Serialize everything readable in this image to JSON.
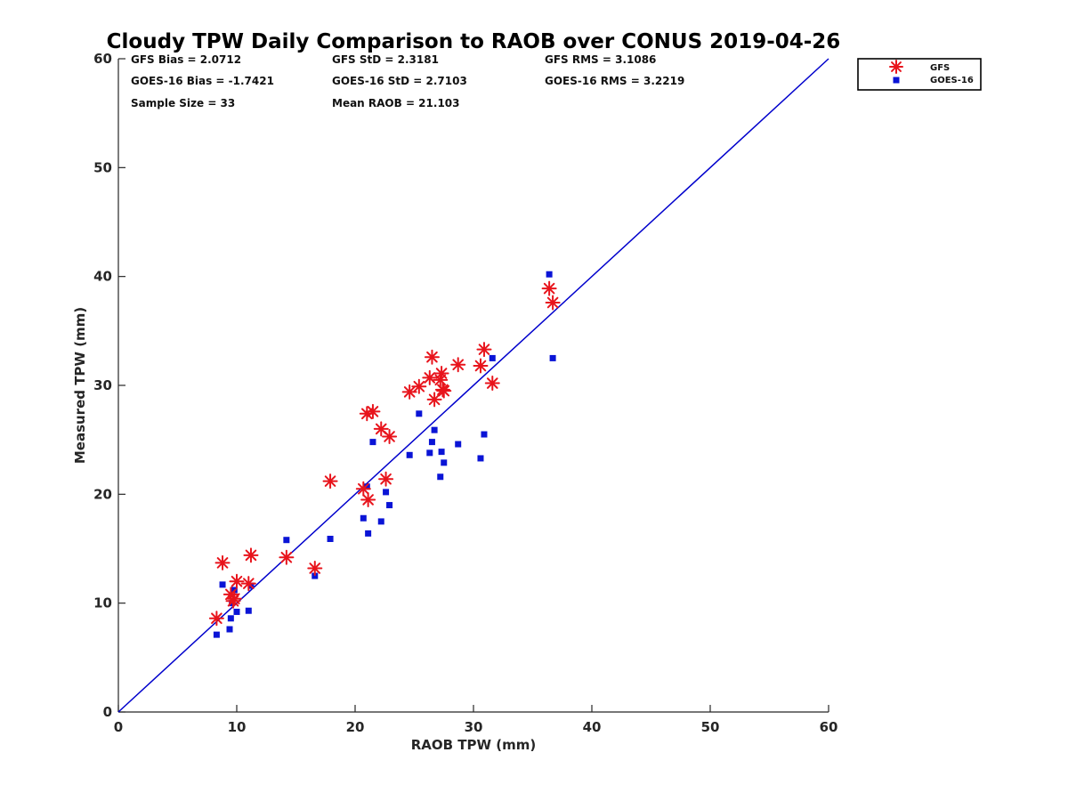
{
  "chart_data": {
    "type": "scatter",
    "title": "Cloudy TPW Daily Comparison to RAOB over CONUS 2019-04-26",
    "xlabel": "RAOB TPW (mm)",
    "ylabel": "Measured TPW (mm)",
    "xlim": [
      0,
      60
    ],
    "ylim": [
      0,
      60
    ],
    "xticks": [
      "0",
      "10",
      "20",
      "30",
      "40",
      "50",
      "60"
    ],
    "yticks": [
      "0",
      "10",
      "20",
      "30",
      "40",
      "50",
      "60"
    ],
    "grid": false,
    "legend_position": "top-right, outside plot",
    "one_to_one_line": {
      "from": [
        0,
        0
      ],
      "to": [
        60,
        60
      ],
      "color": "#0000cc"
    },
    "stats": [
      [
        "GFS Bias = 2.0712",
        "GFS StD = 2.3181",
        "GFS RMS = 3.1086"
      ],
      [
        "GOES-16 Bias = -1.7421",
        "GOES-16 StD = 2.7103",
        "GOES-16 RMS = 3.2219"
      ],
      [
        "Sample Size = 33",
        "Mean RAOB = 21.103",
        ""
      ]
    ],
    "series": [
      {
        "name": "GFS",
        "marker": "asterisk",
        "color": "#e8141c",
        "points": [
          [
            8.3,
            8.6
          ],
          [
            8.8,
            13.7
          ],
          [
            9.5,
            10.8
          ],
          [
            9.7,
            10.2
          ],
          [
            10.0,
            12.0
          ],
          [
            11.0,
            11.8
          ],
          [
            11.2,
            14.4
          ],
          [
            14.2,
            14.2
          ],
          [
            16.6,
            13.2
          ],
          [
            17.9,
            21.2
          ],
          [
            20.7,
            20.5
          ],
          [
            21.0,
            27.4
          ],
          [
            21.1,
            19.5
          ],
          [
            21.5,
            27.6
          ],
          [
            22.2,
            26.0
          ],
          [
            22.6,
            21.4
          ],
          [
            22.9,
            25.3
          ],
          [
            24.6,
            29.4
          ],
          [
            25.4,
            29.9
          ],
          [
            26.3,
            30.7
          ],
          [
            26.5,
            32.6
          ],
          [
            26.7,
            28.7
          ],
          [
            27.2,
            30.5
          ],
          [
            27.3,
            31.1
          ],
          [
            27.4,
            29.6
          ],
          [
            27.5,
            29.5
          ],
          [
            28.7,
            31.9
          ],
          [
            30.6,
            31.8
          ],
          [
            30.9,
            33.3
          ],
          [
            31.6,
            30.2
          ],
          [
            36.4,
            38.9
          ],
          [
            36.7,
            37.6
          ],
          [
            9.8,
            10.4
          ]
        ]
      },
      {
        "name": "GOES-16",
        "marker": "square",
        "color": "#0a14d6",
        "points": [
          [
            8.3,
            7.1
          ],
          [
            8.8,
            11.7
          ],
          [
            9.4,
            7.6
          ],
          [
            9.5,
            8.6
          ],
          [
            9.6,
            10.0
          ],
          [
            9.8,
            11.2
          ],
          [
            10.0,
            9.2
          ],
          [
            11.0,
            9.3
          ],
          [
            11.2,
            11.6
          ],
          [
            14.2,
            15.8
          ],
          [
            16.6,
            12.5
          ],
          [
            17.9,
            15.9
          ],
          [
            20.7,
            17.8
          ],
          [
            21.0,
            20.7
          ],
          [
            21.1,
            16.4
          ],
          [
            21.5,
            24.8
          ],
          [
            22.2,
            17.5
          ],
          [
            22.6,
            20.2
          ],
          [
            22.9,
            19.0
          ],
          [
            24.6,
            23.6
          ],
          [
            25.4,
            27.4
          ],
          [
            26.3,
            23.8
          ],
          [
            26.5,
            24.8
          ],
          [
            26.7,
            25.9
          ],
          [
            27.2,
            21.6
          ],
          [
            27.3,
            23.9
          ],
          [
            27.5,
            22.9
          ],
          [
            28.7,
            24.6
          ],
          [
            30.6,
            23.3
          ],
          [
            30.9,
            25.5
          ],
          [
            31.6,
            32.5
          ],
          [
            36.4,
            40.2
          ],
          [
            36.7,
            32.5
          ]
        ]
      }
    ]
  }
}
